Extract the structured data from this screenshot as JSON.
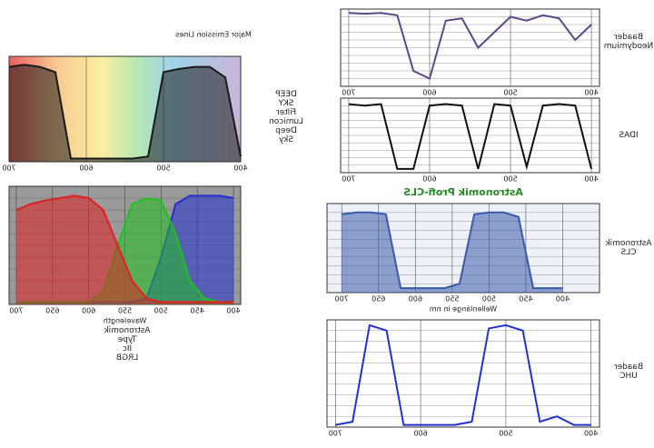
{
  "chart_data": [
    {
      "type": "line",
      "title": "Baader Neodymium",
      "x": [
        400,
        420,
        440,
        460,
        480,
        500,
        520,
        540,
        560,
        580,
        600,
        620,
        640,
        660,
        680,
        700
      ],
      "series": [
        {
          "color": "#5a4a8a",
          "values": [
            80,
            60,
            88,
            92,
            85,
            90,
            70,
            50,
            88,
            85,
            10,
            20,
            92,
            95,
            94,
            95
          ]
        }
      ],
      "xlim": [
        390,
        710
      ],
      "ylim": [
        0,
        100
      ],
      "xticks": [
        400,
        500,
        600,
        700
      ],
      "background": "#ffffff",
      "grid": true
    },
    {
      "type": "line",
      "title": "IDAS",
      "x": [
        400,
        420,
        440,
        460,
        480,
        500,
        520,
        540,
        560,
        580,
        600,
        620,
        640,
        660,
        680,
        700
      ],
      "series": [
        {
          "color": "#111111",
          "values": [
            5,
            90,
            92,
            90,
            8,
            90,
            92,
            5,
            90,
            92,
            90,
            5,
            5,
            92,
            90,
            92
          ]
        }
      ],
      "xlim": [
        390,
        710
      ],
      "ylim": [
        0,
        100
      ],
      "xticks": [
        400,
        500,
        600,
        700
      ],
      "background": "#ffffff",
      "grid": true
    },
    {
      "type": "line",
      "title": "Astronomik CLS",
      "subtitle": "Astronomik Profi-CLS",
      "xlabel": "Wellenlänge in nm",
      "x": [
        400,
        420,
        440,
        460,
        480,
        500,
        520,
        540,
        560,
        580,
        600,
        620,
        640,
        660,
        680,
        700
      ],
      "series": [
        {
          "color": "#3a5aa8",
          "values": [
            5,
            5,
            5,
            85,
            90,
            90,
            88,
            10,
            5,
            5,
            5,
            5,
            88,
            90,
            90,
            88
          ]
        }
      ],
      "xlim": [
        350,
        720
      ],
      "ylim": [
        0,
        100
      ],
      "xticks": [
        400,
        450,
        500,
        550,
        600,
        650,
        700
      ],
      "background": "#eef2f8",
      "area": true,
      "grid": true
    },
    {
      "type": "line",
      "title": "Baader UHC",
      "x": [
        400,
        420,
        440,
        460,
        480,
        500,
        520,
        540,
        560,
        580,
        600,
        620,
        640,
        660,
        680,
        700
      ],
      "series": [
        {
          "color": "#2233cc",
          "values": [
            2,
            2,
            10,
            5,
            90,
            95,
            92,
            5,
            2,
            2,
            2,
            2,
            90,
            95,
            5,
            2
          ]
        }
      ],
      "xlim": [
        390,
        710
      ],
      "ylim": [
        0,
        100
      ],
      "xticks": [
        400,
        500,
        600,
        700
      ],
      "background": "#ffffff",
      "grid": true
    },
    {
      "type": "line",
      "title": "DEEP SKY Filter Lumicon Deep Sky",
      "ylabel": "Major Emission Lines",
      "x": [
        400,
        420,
        440,
        460,
        480,
        500,
        520,
        540,
        560,
        580,
        600,
        620,
        640,
        660,
        680,
        700
      ],
      "series": [
        {
          "color": "#1a1a1a",
          "values": [
            5,
            80,
            90,
            90,
            88,
            85,
            5,
            3,
            3,
            3,
            3,
            3,
            85,
            90,
            92,
            90
          ]
        }
      ],
      "xlim": [
        400,
        700
      ],
      "ylim": [
        0,
        100
      ],
      "xticks": [
        400,
        500,
        600,
        700
      ],
      "background": "spectrum",
      "area": true,
      "grid": false
    },
    {
      "type": "line",
      "title": "Astronomik Type IIc LRGB",
      "xlabel": "Wavelength",
      "x": [
        400,
        420,
        440,
        460,
        480,
        500,
        520,
        540,
        560,
        580,
        600,
        620,
        640,
        660,
        680,
        700
      ],
      "series": [
        {
          "color": "#2030d0",
          "values": [
            90,
            92,
            92,
            92,
            85,
            40,
            5,
            2,
            2,
            2,
            2,
            2,
            2,
            2,
            2,
            2
          ]
        },
        {
          "color": "#20c020",
          "values": [
            2,
            2,
            5,
            20,
            60,
            88,
            90,
            85,
            50,
            10,
            2,
            2,
            2,
            2,
            2,
            2
          ]
        },
        {
          "color": "#e02020",
          "values": [
            2,
            2,
            2,
            2,
            2,
            2,
            5,
            20,
            50,
            80,
            90,
            92,
            90,
            88,
            85,
            80
          ]
        }
      ],
      "xlim": [
        390,
        710
      ],
      "ylim": [
        0,
        100
      ],
      "xticks": [
        400,
        450,
        500,
        550,
        600,
        650,
        700
      ],
      "background": "#9a9a9a",
      "area": true,
      "grid": true
    }
  ]
}
